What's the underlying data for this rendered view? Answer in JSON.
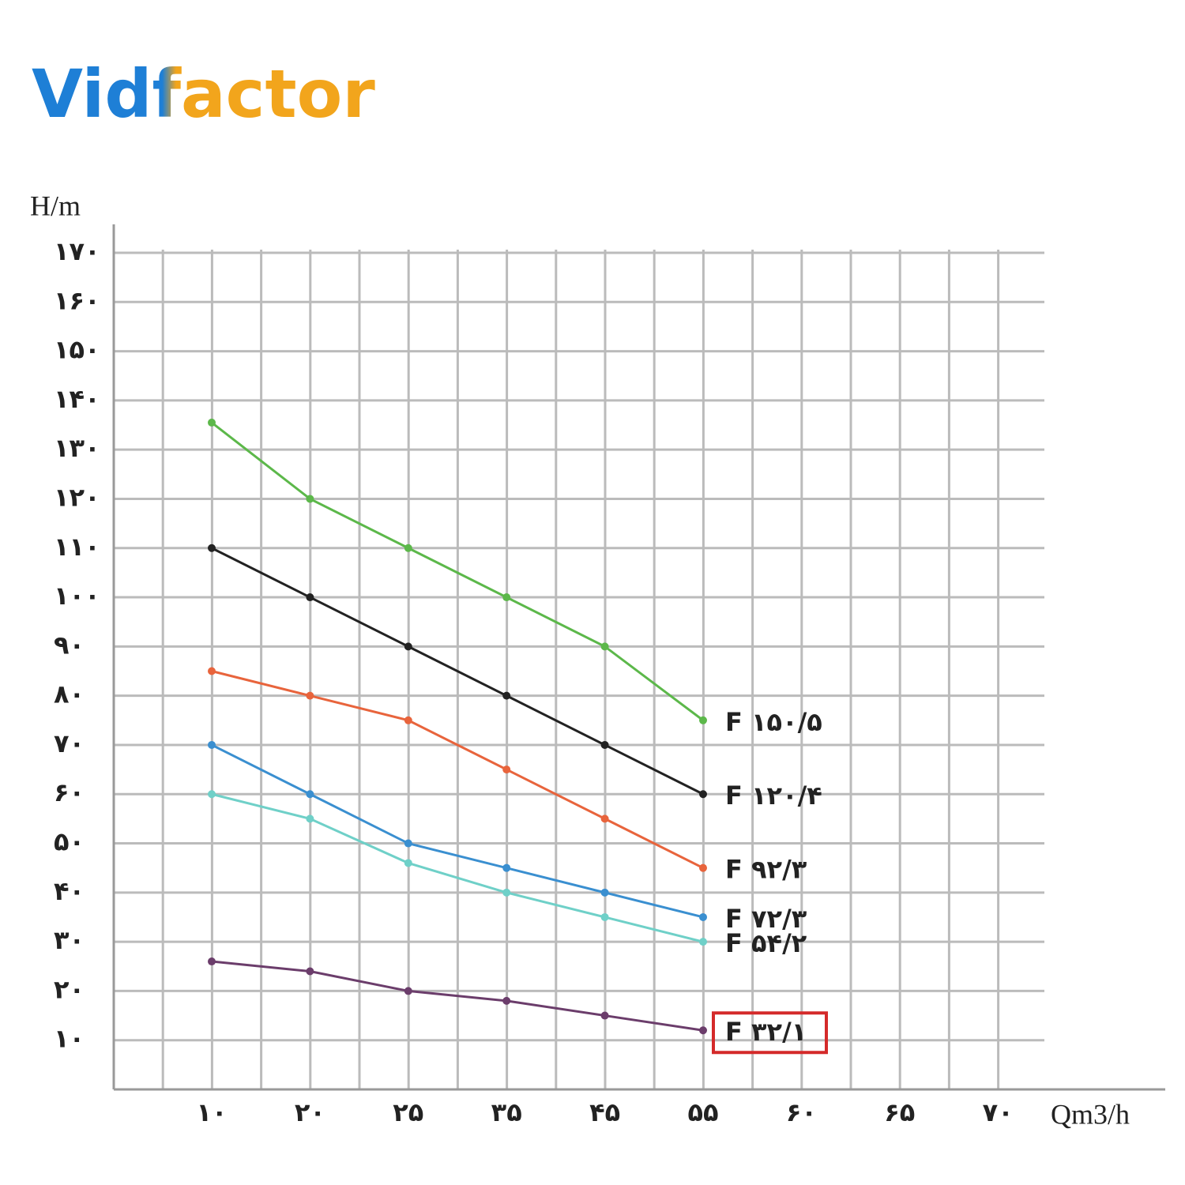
{
  "logo": "Vidfactor",
  "chart_data": {
    "type": "line",
    "y_label": "H/m",
    "x_label": "Qm3/h",
    "categories": [
      "۱۰",
      "۲۰",
      "۲۵",
      "۳۵",
      "۴۵",
      "۵۵",
      "۶۰",
      "۶۵",
      "۷۰"
    ],
    "ylim": [
      0,
      170
    ],
    "yticks": [
      {
        "value": 10,
        "label": "۱۰"
      },
      {
        "value": 20,
        "label": "۲۰"
      },
      {
        "value": 30,
        "label": "۳۰"
      },
      {
        "value": 40,
        "label": "۴۰"
      },
      {
        "value": 50,
        "label": "۵۰"
      },
      {
        "value": 60,
        "label": "۶۰"
      },
      {
        "value": 70,
        "label": "۷۰"
      },
      {
        "value": 80,
        "label": "۸۰"
      },
      {
        "value": 90,
        "label": "۹۰"
      },
      {
        "value": 100,
        "label": "۱۰۰"
      },
      {
        "value": 110,
        "label": "۱۱۰"
      },
      {
        "value": 120,
        "label": "۱۲۰"
      },
      {
        "value": 130,
        "label": "۱۳۰"
      },
      {
        "value": 140,
        "label": "۱۴۰"
      },
      {
        "value": 150,
        "label": "۱۵۰"
      },
      {
        "value": 160,
        "label": "۱۶۰"
      },
      {
        "value": 170,
        "label": "۱۷۰"
      }
    ],
    "grid": true,
    "series": [
      {
        "name": "F ۱۵۰/۵",
        "color": "#5cb84a",
        "values": [
          135.5,
          120,
          110,
          100,
          90,
          75,
          null,
          null,
          null
        ]
      },
      {
        "name": "F ۱۲۰/۴",
        "color": "#222222",
        "values": [
          110,
          100,
          90,
          80,
          70,
          60,
          null,
          null,
          null
        ]
      },
      {
        "name": "F ۹۲/۳",
        "color": "#e8643c",
        "values": [
          85,
          80,
          75,
          65,
          55,
          45,
          null,
          null,
          null
        ]
      },
      {
        "name": "F ۷۲/۳",
        "color": "#3a8fd0",
        "values": [
          70,
          60,
          50,
          45,
          40,
          35,
          null,
          null,
          null
        ]
      },
      {
        "name": "F ۵۴/۲",
        "color": "#6fd0c8",
        "values": [
          60,
          55,
          46,
          40,
          35,
          30,
          null,
          null,
          null
        ]
      },
      {
        "name": "F ۳۲/۱",
        "color": "#6b3d6b",
        "values": [
          26,
          24,
          20,
          18,
          15,
          12,
          null,
          null,
          null
        ]
      }
    ]
  }
}
